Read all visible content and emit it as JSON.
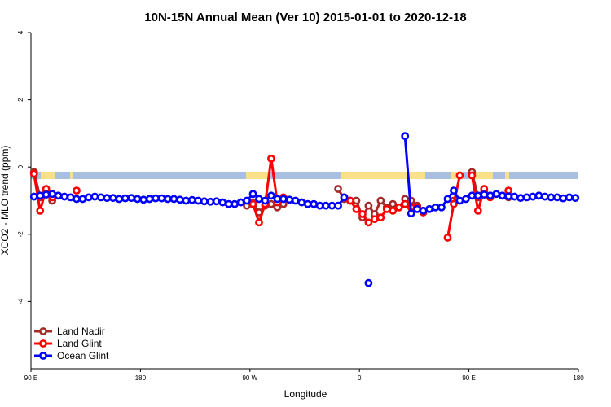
{
  "chart_data": {
    "type": "line",
    "title": "10N-15N Annual Mean (Ver 10)   2015-01-01 to 2020-12-18",
    "xlabel": "Longitude",
    "ylabel": "XCO2 - MLO trend (ppm)",
    "xlim": [
      90,
      540
    ],
    "ylim": [
      -6,
      4
    ],
    "xticks": [
      {
        "value": 90,
        "label": "90 E"
      },
      180,
      {
        "value": 270,
        "label": "90 W"
      },
      {
        "value": 360,
        "label": "0"
      },
      {
        "value": 450,
        "label": "90 E"
      },
      {
        "value": 540,
        "label": "180"
      }
    ],
    "yticks": [
      -4,
      -2,
      0,
      2,
      4
    ],
    "legend": "bottom-left",
    "series": [
      {
        "name": "Land Nadir",
        "color": "#a52a2a",
        "x": [
          92.5,
          97.5,
          102.5,
          107.5,
          112.5,
          267.5,
          272.5,
          277.5,
          282.5,
          287.5,
          292.5,
          297.5,
          302.5,
          342.5,
          347.5,
          352.5,
          357.5,
          362.5,
          367.5,
          372.5,
          377.5,
          382.5,
          387.5,
          392.5,
          397.5,
          402.5,
          407.5,
          412.5,
          417.5,
          437.5,
          442.5,
          452.5,
          457.5,
          462.5,
          467.5,
          472.5,
          482.5
        ],
        "values": [
          -0.15,
          -0.9,
          -0.75,
          -1.0,
          null,
          -1.15,
          -1.05,
          -1.35,
          -1.15,
          -1.1,
          -1.2,
          -1.1,
          null,
          -0.65,
          -0.95,
          -1.0,
          -1.0,
          -1.5,
          -1.15,
          -1.4,
          -1.0,
          -1.2,
          -1.1,
          -1.2,
          -0.95,
          -1.0,
          -1.15,
          -1.3,
          null,
          -1.0,
          null,
          -0.15,
          -0.9,
          -0.75,
          -0.85,
          null,
          -0.9
        ]
      },
      {
        "name": "Land Glint",
        "color": "#ff0000",
        "x": [
          92.5,
          97.5,
          102.5,
          107.5,
          112.5,
          127.5,
          132.5,
          272.5,
          277.5,
          282.5,
          287.5,
          292.5,
          297.5,
          302.5,
          347.5,
          352.5,
          357.5,
          362.5,
          367.5,
          372.5,
          377.5,
          382.5,
          387.5,
          392.5,
          397.5,
          402.5,
          407.5,
          412.5,
          417.5,
          432.5,
          437.5,
          442.5,
          447.5,
          452.5,
          457.5,
          462.5,
          467.5,
          472.5,
          482.5
        ],
        "values": [
          -0.2,
          -1.3,
          -0.65,
          -0.9,
          null,
          -0.7,
          null,
          -1.1,
          -1.65,
          -1.1,
          0.25,
          -1.05,
          -0.9,
          null,
          -0.9,
          -1.0,
          -1.25,
          -1.4,
          -1.65,
          -1.55,
          -1.5,
          -1.25,
          -1.3,
          -1.2,
          -1.1,
          -1.2,
          -1.2,
          -1.35,
          null,
          -2.1,
          -1.1,
          -0.25,
          null,
          -0.25,
          -1.3,
          -0.65,
          -0.9,
          null,
          -0.7
        ]
      },
      {
        "name": "Ocean Glint",
        "color": "#0000ff",
        "x": [
          92.5,
          97.5,
          102.5,
          107.5,
          112.5,
          117.5,
          122.5,
          127.5,
          132.5,
          137.5,
          142.5,
          147.5,
          152.5,
          157.5,
          162.5,
          167.5,
          172.5,
          177.5,
          182.5,
          187.5,
          192.5,
          197.5,
          202.5,
          207.5,
          212.5,
          217.5,
          222.5,
          227.5,
          232.5,
          237.5,
          242.5,
          247.5,
          252.5,
          257.5,
          262.5,
          267.5,
          272.5,
          277.5,
          282.5,
          287.5,
          292.5,
          297.5,
          302.5,
          307.5,
          312.5,
          317.5,
          322.5,
          327.5,
          332.5,
          337.5,
          342.5,
          347.5,
          352.5,
          357.5,
          362.5,
          367.5,
          372.5,
          377.5,
          382.5,
          387.5,
          392.5,
          397.5,
          402.5,
          407.5,
          412.5,
          417.5,
          422.5,
          427.5,
          432.5,
          437.5,
          442.5,
          447.5,
          452.5,
          457.5,
          462.5,
          467.5,
          472.5,
          477.5,
          482.5,
          487.5,
          492.5,
          497.5,
          502.5,
          507.5,
          512.5,
          517.5,
          522.5,
          527.5,
          532.5,
          537.5
        ],
        "values": [
          -0.88,
          -0.85,
          -0.82,
          -0.8,
          -0.85,
          -0.88,
          -0.9,
          -0.95,
          -0.95,
          -0.9,
          -0.88,
          -0.9,
          -0.92,
          -0.92,
          -0.95,
          -0.93,
          -0.92,
          -0.95,
          -0.97,
          -0.95,
          -0.93,
          -0.93,
          -0.95,
          -0.95,
          -0.97,
          -1.0,
          -0.98,
          -1.0,
          -1.02,
          -1.03,
          -1.02,
          -1.05,
          -1.1,
          -1.1,
          -1.05,
          -1.0,
          -0.8,
          -0.95,
          -1.0,
          -0.85,
          -0.95,
          -0.95,
          -0.97,
          -1.0,
          -1.05,
          -1.1,
          -1.1,
          -1.15,
          -1.15,
          -1.15,
          -1.15,
          -0.9,
          null,
          null,
          null,
          -3.45,
          null,
          null,
          null,
          null,
          null,
          0.92,
          -1.38,
          -1.25,
          -1.3,
          -1.25,
          -1.2,
          -1.2,
          -0.95,
          -0.7,
          -1.0,
          -0.95,
          -0.85,
          -0.85,
          -0.82,
          -0.85,
          -0.8,
          -0.85,
          -0.87,
          -0.88,
          -0.92,
          -0.9,
          -0.88,
          -0.85,
          -0.88,
          -0.9,
          -0.9,
          -0.93,
          -0.9,
          -0.92
        ]
      }
    ]
  }
}
